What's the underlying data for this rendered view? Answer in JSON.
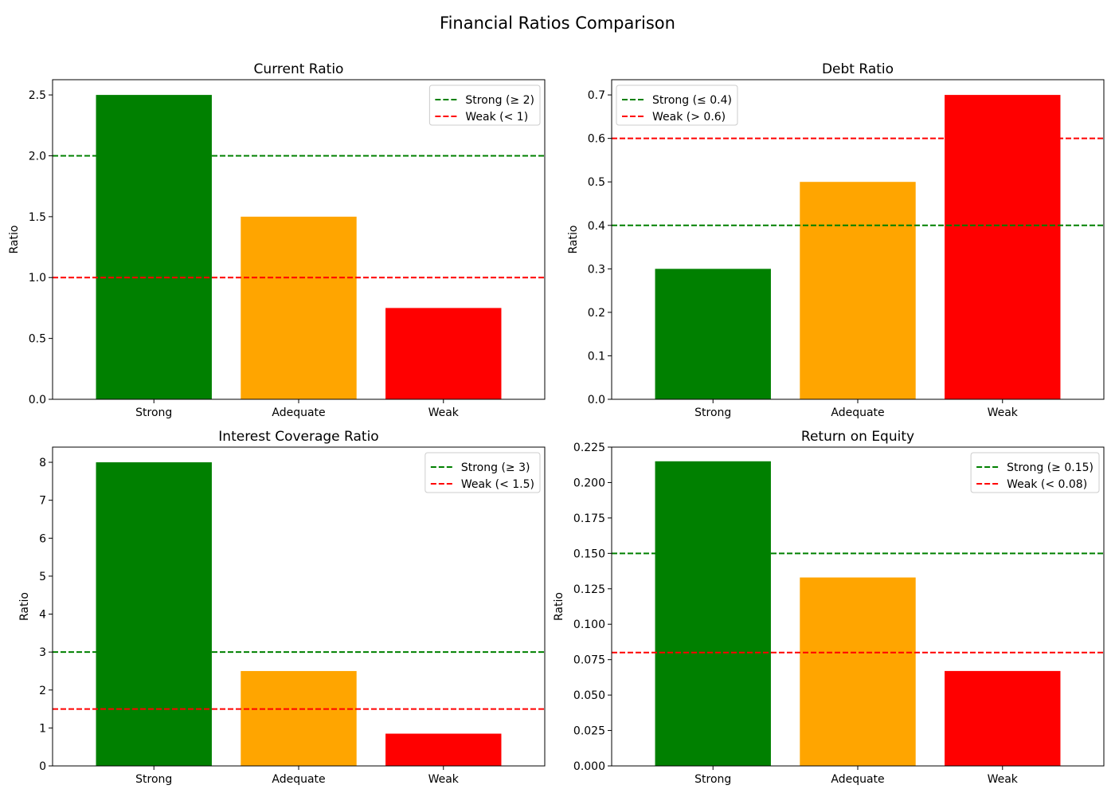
{
  "figure_title": "Financial Ratios Comparison",
  "colors": {
    "strong": "#008000",
    "adequate": "#FFA500",
    "weak": "#FF0000",
    "axis": "#000000"
  },
  "chart_data": [
    {
      "type": "bar",
      "title": "Current Ratio",
      "xlabel": "",
      "ylabel": "Ratio",
      "categories": [
        "Strong",
        "Adequate",
        "Weak"
      ],
      "values": [
        2.5,
        1.5,
        0.75
      ],
      "bar_colors": [
        "#008000",
        "#FFA500",
        "#FF0000"
      ],
      "ylim": [
        0,
        2.625
      ],
      "yticks": [
        0.0,
        0.5,
        1.0,
        1.5,
        2.0,
        2.5
      ],
      "ytick_labels": [
        "0.0",
        "0.5",
        "1.0",
        "1.5",
        "2.0",
        "2.5"
      ],
      "reference_lines": [
        {
          "label": "Strong (≥ 2)",
          "value": 2.0,
          "color": "#008000",
          "style": "dashed"
        },
        {
          "label": "Weak (< 1)",
          "value": 1.0,
          "color": "#FF0000",
          "style": "dashed"
        }
      ],
      "legend_placement": "top-right",
      "grid": false
    },
    {
      "type": "bar",
      "title": "Debt Ratio",
      "xlabel": "",
      "ylabel": "Ratio",
      "categories": [
        "Strong",
        "Adequate",
        "Weak"
      ],
      "values": [
        0.3,
        0.5,
        0.7
      ],
      "bar_colors": [
        "#008000",
        "#FFA500",
        "#FF0000"
      ],
      "ylim": [
        0,
        0.735
      ],
      "yticks": [
        0.0,
        0.1,
        0.2,
        0.3,
        0.4,
        0.5,
        0.6,
        0.7
      ],
      "ytick_labels": [
        "0.0",
        "0.1",
        "0.2",
        "0.3",
        "0.4",
        "0.5",
        "0.6",
        "0.7"
      ],
      "reference_lines": [
        {
          "label": "Strong (≤ 0.4)",
          "value": 0.4,
          "color": "#008000",
          "style": "dashed"
        },
        {
          "label": "Weak (> 0.6)",
          "value": 0.6,
          "color": "#FF0000",
          "style": "dashed"
        }
      ],
      "legend_placement": "top-left",
      "grid": false
    },
    {
      "type": "bar",
      "title": "Interest Coverage Ratio",
      "xlabel": "",
      "ylabel": "Ratio",
      "categories": [
        "Strong",
        "Adequate",
        "Weak"
      ],
      "values": [
        8.0,
        2.5,
        0.85
      ],
      "bar_colors": [
        "#008000",
        "#FFA500",
        "#FF0000"
      ],
      "ylim": [
        0,
        8.4
      ],
      "yticks": [
        0,
        1,
        2,
        3,
        4,
        5,
        6,
        7,
        8
      ],
      "ytick_labels": [
        "0",
        "1",
        "2",
        "3",
        "4",
        "5",
        "6",
        "7",
        "8"
      ],
      "reference_lines": [
        {
          "label": "Strong (≥ 3)",
          "value": 3.0,
          "color": "#008000",
          "style": "dashed"
        },
        {
          "label": "Weak (< 1.5)",
          "value": 1.5,
          "color": "#FF0000",
          "style": "dashed"
        }
      ],
      "legend_placement": "top-right",
      "grid": false
    },
    {
      "type": "bar",
      "title": "Return on Equity",
      "xlabel": "",
      "ylabel": "Ratio",
      "categories": [
        "Strong",
        "Adequate",
        "Weak"
      ],
      "values": [
        0.215,
        0.133,
        0.067
      ],
      "bar_colors": [
        "#008000",
        "#FFA500",
        "#FF0000"
      ],
      "ylim": [
        0,
        0.225
      ],
      "yticks": [
        0.0,
        0.025,
        0.05,
        0.075,
        0.1,
        0.125,
        0.15,
        0.175,
        0.2,
        0.225
      ],
      "ytick_labels": [
        "0.000",
        "0.025",
        "0.050",
        "0.075",
        "0.100",
        "0.125",
        "0.150",
        "0.175",
        "0.200",
        "0.225"
      ],
      "reference_lines": [
        {
          "label": "Strong (≥ 0.15)",
          "value": 0.15,
          "color": "#008000",
          "style": "dashed"
        },
        {
          "label": "Weak (< 0.08)",
          "value": 0.08,
          "color": "#FF0000",
          "style": "dashed"
        }
      ],
      "legend_placement": "top-right",
      "grid": false
    }
  ]
}
